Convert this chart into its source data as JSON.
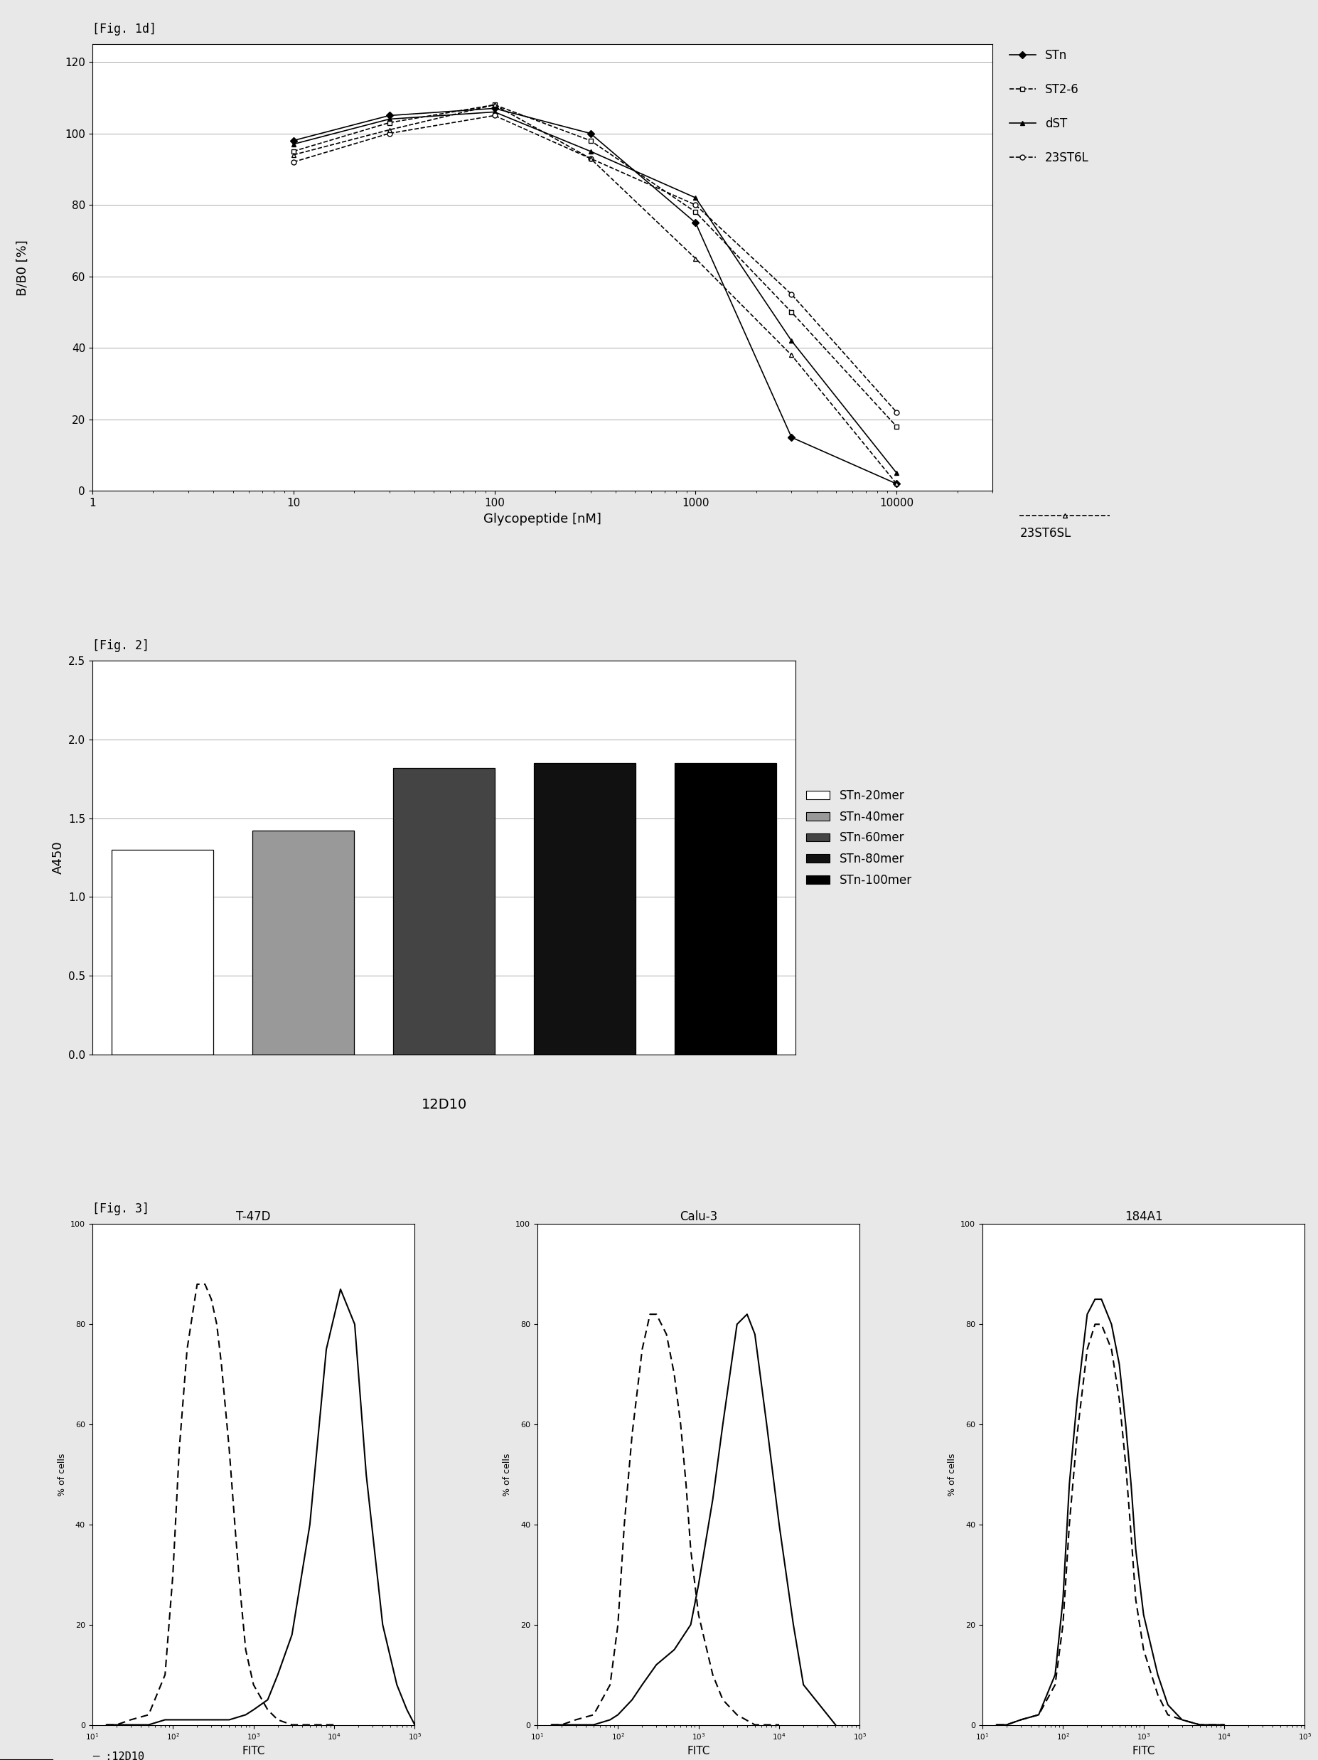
{
  "fig_label1": "[Fig. 1d]",
  "fig_label2": "[Fig. 2]",
  "fig_label3": "[Fig. 3]",
  "plot1": {
    "ylabel": "B/B0 [%]",
    "xlabel": "Glycopeptide [nM]",
    "ylim": [
      0,
      125
    ],
    "yticks": [
      0,
      20,
      40,
      60,
      80,
      100,
      120
    ],
    "xtick_labels": [
      "1",
      "10",
      "100",
      "1000",
      "10000"
    ],
    "xtick_vals": [
      1,
      10,
      100,
      1000,
      10000
    ],
    "series": {
      "STn": {
        "x": [
          10,
          30,
          100,
          300,
          1000,
          3000,
          10000
        ],
        "y": [
          98,
          105,
          107,
          100,
          75,
          15,
          2
        ],
        "marker": "D",
        "linestyle": "-",
        "mfc": "black"
      },
      "ST2-6": {
        "x": [
          10,
          30,
          100,
          300,
          1000,
          3000,
          10000
        ],
        "y": [
          95,
          103,
          108,
          98,
          78,
          50,
          18
        ],
        "marker": "s",
        "linestyle": "--",
        "mfc": "white"
      },
      "dST": {
        "x": [
          10,
          30,
          100,
          300,
          1000,
          3000,
          10000
        ],
        "y": [
          97,
          104,
          106,
          95,
          82,
          42,
          5
        ],
        "marker": "^",
        "linestyle": "-",
        "mfc": "black"
      },
      "23ST6L": {
        "x": [
          10,
          30,
          100,
          300,
          1000,
          3000,
          10000
        ],
        "y": [
          92,
          100,
          105,
          93,
          80,
          55,
          22
        ],
        "marker": "o",
        "linestyle": "--",
        "mfc": "white"
      },
      "23ST6SL": {
        "x": [
          10,
          30,
          100,
          300,
          1000,
          3000,
          10000
        ],
        "y": [
          94,
          101,
          108,
          93,
          65,
          38,
          2
        ],
        "marker": "^",
        "linestyle": "--",
        "mfc": "white"
      }
    },
    "legend_entries": [
      {
        "label": "STn",
        "marker": "D",
        "linestyle": "-",
        "mfc": "black"
      },
      {
        "label": "ST2-6",
        "marker": "s",
        "linestyle": "--",
        "mfc": "white"
      },
      {
        "label": "dST",
        "marker": "^",
        "linestyle": "-",
        "mfc": "black"
      },
      {
        "label": "23ST6L",
        "marker": "o",
        "linestyle": "--",
        "mfc": "white"
      },
      {
        "label": "23ST6SL",
        "marker": "^",
        "linestyle": "--",
        "mfc": "white"
      }
    ]
  },
  "plot2": {
    "ylabel": "A450",
    "xlabel": "12D10",
    "ylim": [
      0.0,
      2.5
    ],
    "yticks": [
      0.0,
      0.5,
      1.0,
      1.5,
      2.0,
      2.5
    ],
    "categories": [
      "STn-20mer",
      "STn-40mer",
      "STn-60mer",
      "STn-80mer",
      "STn-100mer"
    ],
    "values": [
      1.3,
      1.42,
      1.82,
      1.85,
      1.85
    ],
    "colors": [
      "#ffffff",
      "#999999",
      "#444444",
      "#111111",
      "#000000"
    ],
    "legend_labels": [
      "STn-20mer",
      "STn-40mer",
      "STn-60mer",
      "STn-80mer",
      "STn-100mer"
    ],
    "legend_colors": [
      "#ffffff",
      "#999999",
      "#444444",
      "#111111",
      "#000000"
    ]
  },
  "plot3": {
    "panels": [
      "T-47D",
      "Calu-3",
      "184A1"
    ],
    "ylabel": "% of cells",
    "xlabel": "FITC",
    "ylim": [
      0,
      100
    ],
    "yticks": [
      0,
      20,
      40,
      60,
      80,
      100
    ],
    "xtick_vals": [
      10,
      100,
      1000,
      10000,
      100000
    ],
    "flow_data": {
      "T47D_solid_x": [
        15,
        20,
        30,
        50,
        80,
        100,
        200,
        500,
        800,
        1000,
        1500,
        2000,
        3000,
        5000,
        8000,
        12000,
        18000,
        25000,
        40000,
        60000,
        80000,
        100000
      ],
      "T47D_solid_y": [
        0,
        0,
        0,
        0,
        1,
        1,
        1,
        1,
        2,
        3,
        5,
        10,
        18,
        40,
        75,
        87,
        80,
        50,
        20,
        8,
        3,
        0
      ],
      "T47D_dashed_x": [
        15,
        20,
        30,
        50,
        80,
        100,
        120,
        150,
        200,
        250,
        300,
        350,
        400,
        500,
        600,
        700,
        800,
        1000,
        1500,
        2000,
        3000,
        5000,
        10000
      ],
      "T47D_dashed_y": [
        0,
        0,
        1,
        2,
        10,
        30,
        55,
        75,
        88,
        88,
        85,
        80,
        72,
        55,
        38,
        25,
        15,
        8,
        3,
        1,
        0,
        0,
        0
      ],
      "Calu3_solid_x": [
        15,
        20,
        30,
        50,
        80,
        100,
        150,
        200,
        300,
        500,
        800,
        1000,
        1500,
        2000,
        3000,
        4000,
        5000,
        7000,
        10000,
        15000,
        20000,
        50000
      ],
      "Calu3_solid_y": [
        0,
        0,
        0,
        0,
        1,
        2,
        5,
        8,
        12,
        15,
        20,
        28,
        45,
        60,
        80,
        82,
        78,
        60,
        40,
        20,
        8,
        0
      ],
      "Calu3_dashed_x": [
        15,
        20,
        30,
        50,
        80,
        100,
        120,
        150,
        200,
        250,
        300,
        400,
        500,
        600,
        700,
        800,
        1000,
        1500,
        2000,
        3000,
        5000,
        10000
      ],
      "Calu3_dashed_y": [
        0,
        0,
        1,
        2,
        8,
        20,
        40,
        58,
        75,
        82,
        82,
        78,
        70,
        60,
        48,
        35,
        22,
        10,
        5,
        2,
        0,
        0
      ],
      "A184_solid_x": [
        15,
        20,
        30,
        50,
        80,
        100,
        120,
        150,
        200,
        250,
        300,
        400,
        500,
        600,
        700,
        800,
        1000,
        1500,
        2000,
        3000,
        5000,
        10000
      ],
      "A184_solid_y": [
        0,
        0,
        1,
        2,
        10,
        25,
        48,
        65,
        82,
        85,
        85,
        80,
        72,
        60,
        48,
        35,
        22,
        10,
        4,
        1,
        0,
        0
      ],
      "A184_dashed_x": [
        15,
        20,
        30,
        50,
        80,
        100,
        120,
        150,
        200,
        250,
        300,
        400,
        500,
        600,
        700,
        800,
        1000,
        1500,
        2000,
        3000,
        5000,
        10000
      ],
      "A184_dashed_y": [
        0,
        0,
        1,
        2,
        8,
        20,
        40,
        58,
        75,
        80,
        80,
        75,
        65,
        52,
        38,
        25,
        15,
        6,
        2,
        1,
        0,
        0
      ]
    }
  },
  "bg_color": "#e8e8e8",
  "panel_bg": "#ffffff"
}
